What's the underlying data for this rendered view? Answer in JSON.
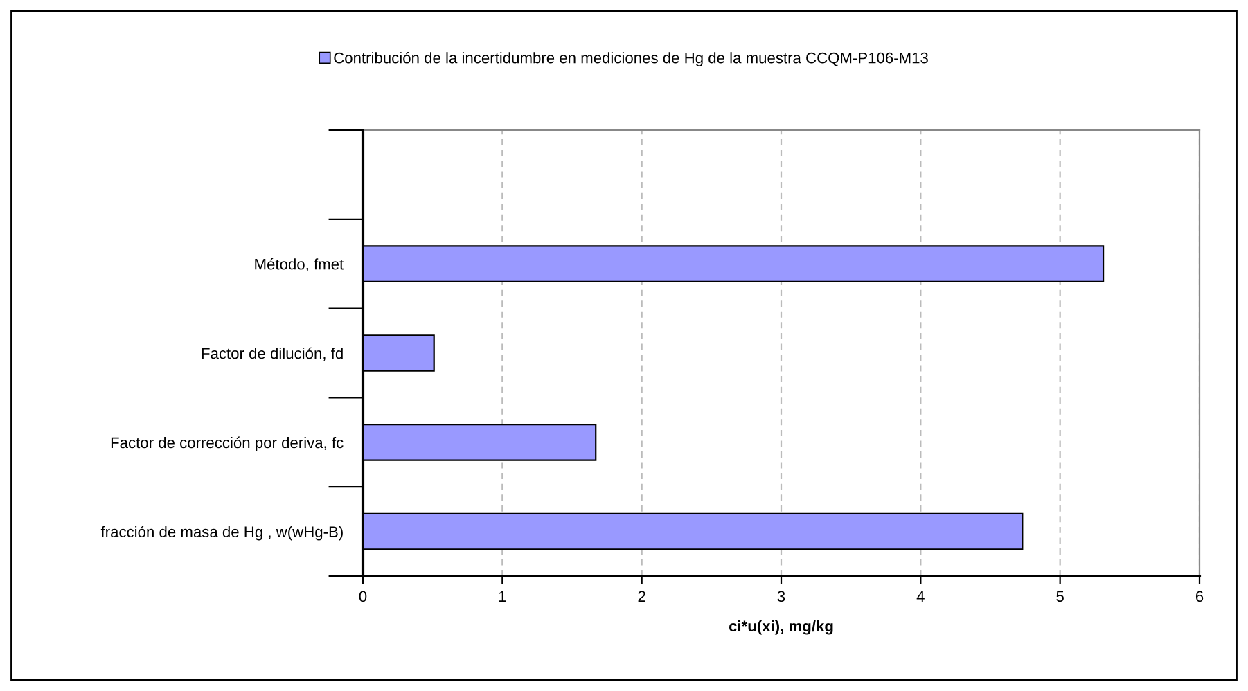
{
  "chart_data": {
    "type": "bar",
    "orientation": "horizontal",
    "xlabel": "ci*u(xi), mg/kg",
    "categories": [
      null,
      "Método, fmet",
      "Factor de dilución, fd",
      "Factor de corrección por deriva, fc",
      "fracción de masa de Hg , w(wHg-B)"
    ],
    "series": [
      {
        "name": "Contribución de la incertidumbre en mediciones de Hg de la muestra CCQM-P106-M13",
        "color": "#9999ff",
        "values": [
          null,
          5.31,
          0.51,
          1.67,
          4.73
        ]
      }
    ],
    "xlim": [
      0,
      6
    ],
    "xticks": [
      0,
      1,
      2,
      3,
      4,
      5,
      6
    ],
    "grid": "x",
    "legend": "top"
  }
}
